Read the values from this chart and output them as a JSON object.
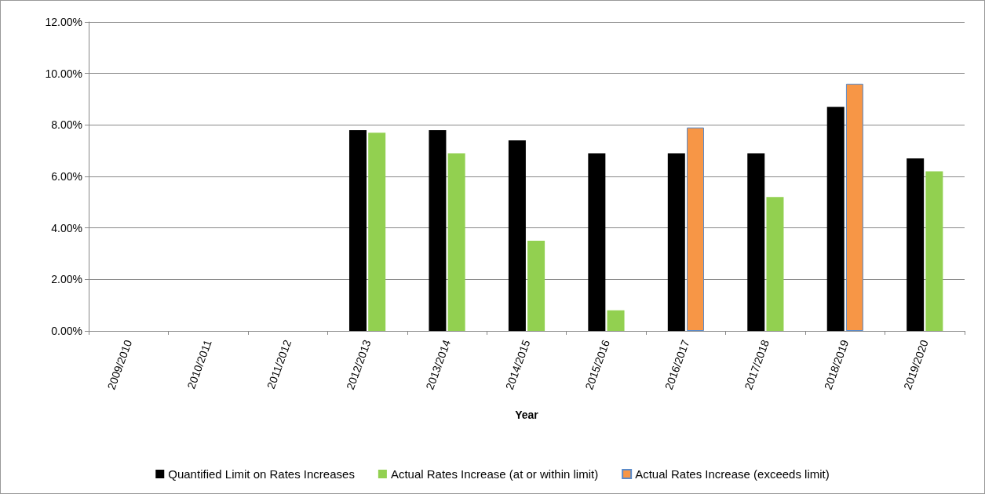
{
  "chart_data": {
    "type": "bar",
    "xlabel": "Year",
    "categories": [
      "2009/2010",
      "2010/2011",
      "2011/2012",
      "2012/2013",
      "2013/2014",
      "2014/2015",
      "2015/2016",
      "2016/2017",
      "2017/2018",
      "2018/2019",
      "2019/2020"
    ],
    "series": [
      {
        "name": "Quantified Limit on Rates Increases",
        "color": "#000000",
        "values": [
          null,
          null,
          null,
          7.8,
          7.8,
          7.4,
          6.9,
          6.9,
          6.9,
          8.7,
          6.7
        ]
      },
      {
        "name": "Actual Rates Increase (at or within limit)",
        "color": "#92d050",
        "values": [
          null,
          null,
          null,
          7.7,
          6.9,
          3.5,
          0.8,
          null,
          5.2,
          null,
          6.2
        ]
      },
      {
        "name": "Actual Rates Increase (exceeds limit)",
        "color": "#f79646",
        "values": [
          null,
          null,
          null,
          null,
          null,
          null,
          null,
          7.9,
          null,
          9.6,
          null
        ]
      }
    ],
    "ylim": [
      0,
      12
    ],
    "yticks": [
      {
        "value": 0,
        "label": "0.00%"
      },
      {
        "value": 2,
        "label": "2.00%"
      },
      {
        "value": 4,
        "label": "4.00%"
      },
      {
        "value": 6,
        "label": "6.00%"
      },
      {
        "value": 8,
        "label": "8.00%"
      },
      {
        "value": 10,
        "label": "10.00%"
      },
      {
        "value": 12,
        "label": "12.00%"
      }
    ],
    "grid": "y",
    "legend": "bottom"
  }
}
